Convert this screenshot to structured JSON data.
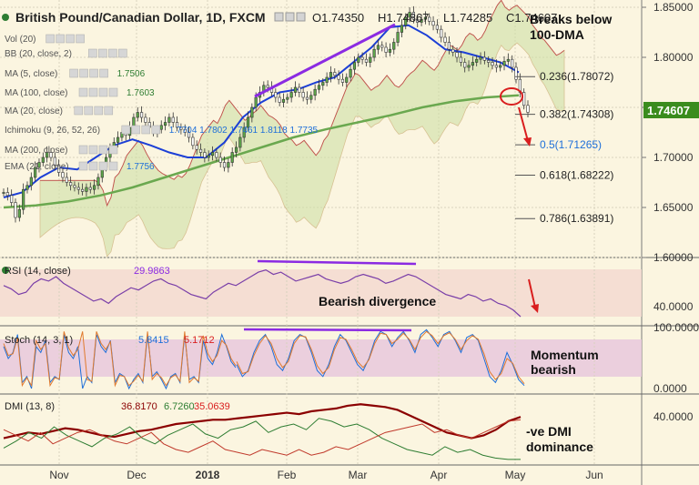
{
  "chart_data": [
    {
      "type": "candlestick",
      "title": "British Pound/Canadian Dollar, 1D, FXCM",
      "ohlc": {
        "open": "O1.74350",
        "high": "H1.74867",
        "low": "L1.74285",
        "close": "C1.74607"
      },
      "legend": [
        {
          "label": "Vol (20)",
          "value": ""
        },
        {
          "label": "BB (20, close, 2)",
          "value": ""
        },
        {
          "label": "MA (5, close)",
          "value": "1.7506"
        },
        {
          "label": "MA (100, close)",
          "value": "1.7603"
        },
        {
          "label": "MA (20, close)",
          "value": ""
        },
        {
          "label": "Ichimoku (9, 26, 52, 26)",
          "value": "1.7704  1.7802  1.7461  1.8118  1.7735"
        },
        {
          "label": "MA (200, close)",
          "value": ""
        },
        {
          "label": "EMA (21, close)",
          "value": "1.7756"
        }
      ],
      "annotation": "Breaks below\n100-DMA",
      "y_ticks": [
        "1.85000",
        "1.80000",
        "1.75000",
        "1.70000",
        "1.65000",
        "1.60000"
      ],
      "ylim": [
        1.6,
        1.85
      ],
      "current_price": "1.74607",
      "fibonacci": [
        {
          "label": "0.236(1.78072)",
          "value": 1.78072
        },
        {
          "label": "0.382(1.74308)",
          "value": 1.74308
        },
        {
          "label": "0.5(1.71265)",
          "value": 1.71265
        },
        {
          "label": "0.618(1.68222)",
          "value": 1.68222
        },
        {
          "label": "0.786(1.63891)",
          "value": 1.63891
        }
      ],
      "close_series": [
        1.665,
        1.662,
        1.655,
        1.64,
        1.648,
        1.668,
        1.672,
        1.68,
        1.69,
        1.695,
        1.7,
        1.705,
        1.7,
        1.692,
        1.685,
        1.68,
        1.675,
        1.672,
        1.67,
        1.668,
        1.666,
        1.67,
        1.668,
        1.672,
        1.68,
        1.69,
        1.7,
        1.71,
        1.715,
        1.72,
        1.725,
        1.722,
        1.73,
        1.74,
        1.745,
        1.74,
        1.735,
        1.73,
        1.725,
        1.728,
        1.732,
        1.735,
        1.74,
        1.735,
        1.73,
        1.728,
        1.725,
        1.72,
        1.712,
        1.708,
        1.705,
        1.7,
        1.702,
        1.705,
        1.7,
        1.695,
        1.69,
        1.695,
        1.705,
        1.71,
        1.72,
        1.73,
        1.74,
        1.75,
        1.76,
        1.765,
        1.772,
        1.77,
        1.765,
        1.76,
        1.755,
        1.758,
        1.76,
        1.765,
        1.77,
        1.765,
        1.76,
        1.758,
        1.762,
        1.768,
        1.772,
        1.775,
        1.78,
        1.785,
        1.782,
        1.778,
        1.775,
        1.78,
        1.788,
        1.795,
        1.8,
        1.798,
        1.795,
        1.8,
        1.808,
        1.812,
        1.81,
        1.805,
        1.808,
        1.815,
        1.825,
        1.832,
        1.84,
        1.845,
        1.838,
        1.835,
        1.838,
        1.84,
        1.836,
        1.832,
        1.828,
        1.82,
        1.815,
        1.808,
        1.805,
        1.8,
        1.795,
        1.79,
        1.792,
        1.795,
        1.798,
        1.8,
        1.797,
        1.795,
        1.792,
        1.79,
        1.792,
        1.796,
        1.798,
        1.79,
        1.778,
        1.765,
        1.752,
        1.745
      ],
      "ma100_series": [
        1.65,
        1.652,
        1.656,
        1.662,
        1.67,
        1.68,
        1.69,
        1.7,
        1.71,
        1.72,
        1.728,
        1.735,
        1.742,
        1.75,
        1.756,
        1.76,
        1.762
      ],
      "ema21_series": [
        1.66,
        1.665,
        1.68,
        1.69,
        1.688,
        1.7,
        1.712,
        1.718,
        1.712,
        1.705,
        1.7,
        1.7,
        1.715,
        1.74,
        1.755,
        1.765,
        1.768,
        1.775,
        1.78,
        1.795,
        1.81,
        1.83,
        1.832,
        1.822,
        1.808,
        1.805,
        1.8,
        1.795,
        1.785
      ],
      "arrow_note": "down"
    },
    {
      "type": "line",
      "name": "RSI (14, close)",
      "value": "29.9863",
      "y_ticks": [
        "40.0000"
      ],
      "annotation": "Bearish divergence",
      "series": [
        58,
        55,
        50,
        52,
        60,
        64,
        62,
        66,
        60,
        56,
        52,
        48,
        44,
        46,
        42,
        48,
        52,
        56,
        54,
        58,
        62,
        64,
        60,
        58,
        54,
        50,
        48,
        46,
        52,
        56,
        60,
        58,
        62,
        66,
        70,
        72,
        68,
        70,
        66,
        62,
        64,
        66,
        68,
        64,
        62,
        60,
        62,
        66,
        68,
        66,
        64,
        60,
        62,
        65,
        68,
        66,
        62,
        58,
        54,
        50,
        48,
        46,
        50,
        48,
        44,
        46,
        42,
        40,
        36,
        30
      ]
    },
    {
      "type": "line",
      "name": "Stoch (14, 3, 1)",
      "values": [
        "5.8415",
        "5.1712"
      ],
      "y_ticks": [
        "100.0000",
        "0.0000"
      ],
      "annotation": "Momentum\nbearish",
      "series": [
        {
          "name": "%K",
          "values": [
            40,
            20,
            30,
            60,
            80,
            90,
            70,
            40,
            30,
            50,
            80,
            90,
            85,
            60,
            30,
            20,
            40,
            70,
            90,
            80,
            60,
            40,
            30,
            50,
            80,
            95,
            90,
            70,
            85,
            95,
            80,
            60,
            90,
            98,
            85,
            70,
            90,
            95,
            80,
            60,
            85,
            90,
            80,
            50,
            20,
            10,
            30,
            60,
            40,
            15,
            5
          ]
        },
        {
          "name": "%D",
          "values": [
            45,
            25,
            28,
            55,
            75,
            88,
            75,
            50,
            35,
            45,
            75,
            88,
            86,
            65,
            38,
            25,
            35,
            65,
            85,
            82,
            65,
            45,
            35,
            48,
            75,
            92,
            90,
            75,
            82,
            92,
            82,
            65,
            85,
            95,
            88,
            75,
            88,
            93,
            82,
            65,
            80,
            88,
            82,
            58,
            28,
            15,
            25,
            50,
            42,
            20,
            8
          ]
        }
      ]
    },
    {
      "type": "line",
      "name": "DMI (13, 8)",
      "values": [
        "36.8170",
        "6.7260",
        "35.0639"
      ],
      "y_ticks": [
        "40.0000"
      ],
      "annotation": "-ve DMI\ndominance",
      "x_labels": [
        "Nov",
        "Dec",
        "2018",
        "Feb",
        "Mar",
        "Apr",
        "May",
        "Jun"
      ],
      "series": [
        {
          "name": "ADX",
          "values": [
            22,
            24,
            26,
            25,
            27,
            29,
            28,
            26,
            24,
            23,
            25,
            27,
            28,
            30,
            32,
            33,
            34,
            35,
            35,
            36,
            37,
            38,
            39,
            40,
            39,
            41,
            42,
            43,
            45,
            46,
            45,
            44,
            42,
            38,
            34,
            30,
            26,
            24,
            22,
            24,
            28,
            34,
            37
          ]
        },
        {
          "name": "+DI",
          "values": [
            15,
            20,
            26,
            22,
            30,
            24,
            20,
            16,
            22,
            25,
            30,
            22,
            18,
            24,
            28,
            32,
            25,
            22,
            28,
            30,
            34,
            26,
            30,
            32,
            28,
            36,
            34,
            30,
            32,
            28,
            22,
            18,
            14,
            12,
            10,
            16,
            12,
            14,
            10,
            8,
            7,
            7
          ]
        },
        {
          "name": "-DI",
          "values": [
            28,
            24,
            20,
            26,
            18,
            22,
            26,
            28,
            24,
            20,
            18,
            22,
            26,
            18,
            14,
            12,
            16,
            20,
            14,
            12,
            10,
            14,
            12,
            10,
            14,
            10,
            12,
            16,
            14,
            18,
            22,
            26,
            28,
            30,
            32,
            26,
            28,
            24,
            22,
            26,
            30,
            34,
            35
          ]
        }
      ]
    }
  ]
}
